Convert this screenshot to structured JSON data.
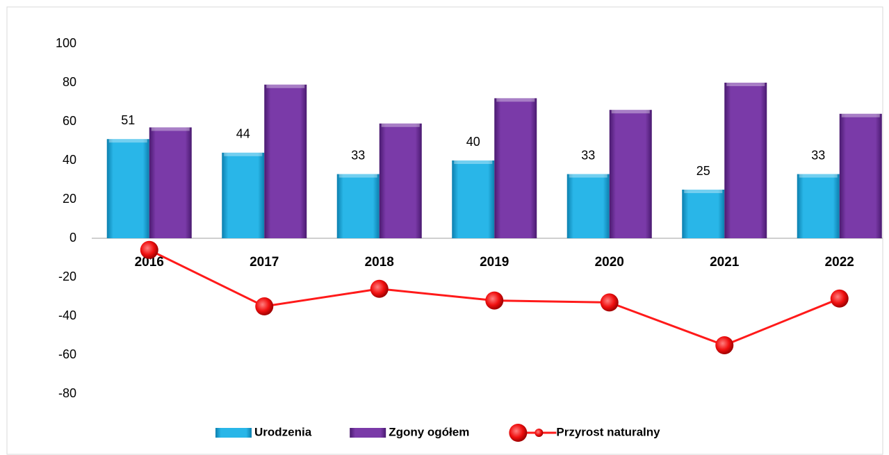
{
  "chart_data": {
    "type": "bar",
    "categories": [
      "2016",
      "2017",
      "2018",
      "2019",
      "2020",
      "2021",
      "2022"
    ],
    "series": [
      {
        "name": "Urodzenia",
        "color": "#29b6e8",
        "values": [
          51,
          44,
          33,
          40,
          33,
          25,
          33
        ],
        "data_labels": true
      },
      {
        "name": "Zgony ogółem",
        "color": "#7a3aa8",
        "values": [
          57,
          79,
          59,
          72,
          66,
          80,
          64
        ]
      },
      {
        "name": "Przyrost naturalny",
        "type": "line",
        "color": "#ff1a1a",
        "values": [
          -6,
          -35,
          -26,
          -32,
          -33,
          -55,
          -31
        ]
      }
    ],
    "ylim": [
      -80,
      100
    ],
    "yticks": [
      -80,
      -60,
      -40,
      -20,
      0,
      20,
      40,
      60,
      80,
      100
    ],
    "legend": "bottom"
  }
}
